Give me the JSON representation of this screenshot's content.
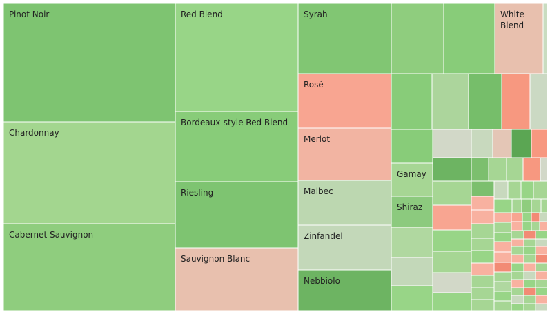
{
  "chart_data": {
    "type": "treemap",
    "tiles": [
      {
        "label": "Pinot Noir",
        "value": 1110,
        "color": "#7ec471"
      },
      {
        "label": "Chardonnay",
        "value": 925,
        "color": "#a3d68f"
      },
      {
        "label": "Cabernet Sauvignon",
        "value": 785,
        "color": "#8fcd7e"
      },
      {
        "label": "Red Blend",
        "value": 705,
        "color": "#98d587"
      },
      {
        "label": "Bordeaux-style Red Blend",
        "value": 440,
        "color": "#88cc79"
      },
      {
        "label": "Riesling",
        "value": 415,
        "color": "#7ec471"
      },
      {
        "label": "Sauvignon Blanc",
        "value": 405,
        "color": "#e8c0ae"
      },
      {
        "label": "Syrah",
        "value": 290,
        "color": "#81c673"
      },
      {
        "label": "Rosé",
        "value": 245,
        "color": "#f8a591"
      },
      {
        "label": "Merlot",
        "value": 210,
        "color": "#f2b4a2"
      },
      {
        "label": "Malbec",
        "value": 175,
        "color": "#bcd7b0"
      },
      {
        "label": "Zinfandel",
        "value": 175,
        "color": "#c3d8b9"
      },
      {
        "label": "Nebbiolo",
        "value": 155,
        "color": "#6db462"
      },
      {
        "label": "White Blend",
        "value": 80,
        "color": "#e8c0ae"
      },
      {
        "label": "Gamay",
        "value": 60,
        "color": "#a6d694"
      },
      {
        "label": "Shiraz",
        "value": 55,
        "color": "#8cca7e"
      }
    ]
  }
}
